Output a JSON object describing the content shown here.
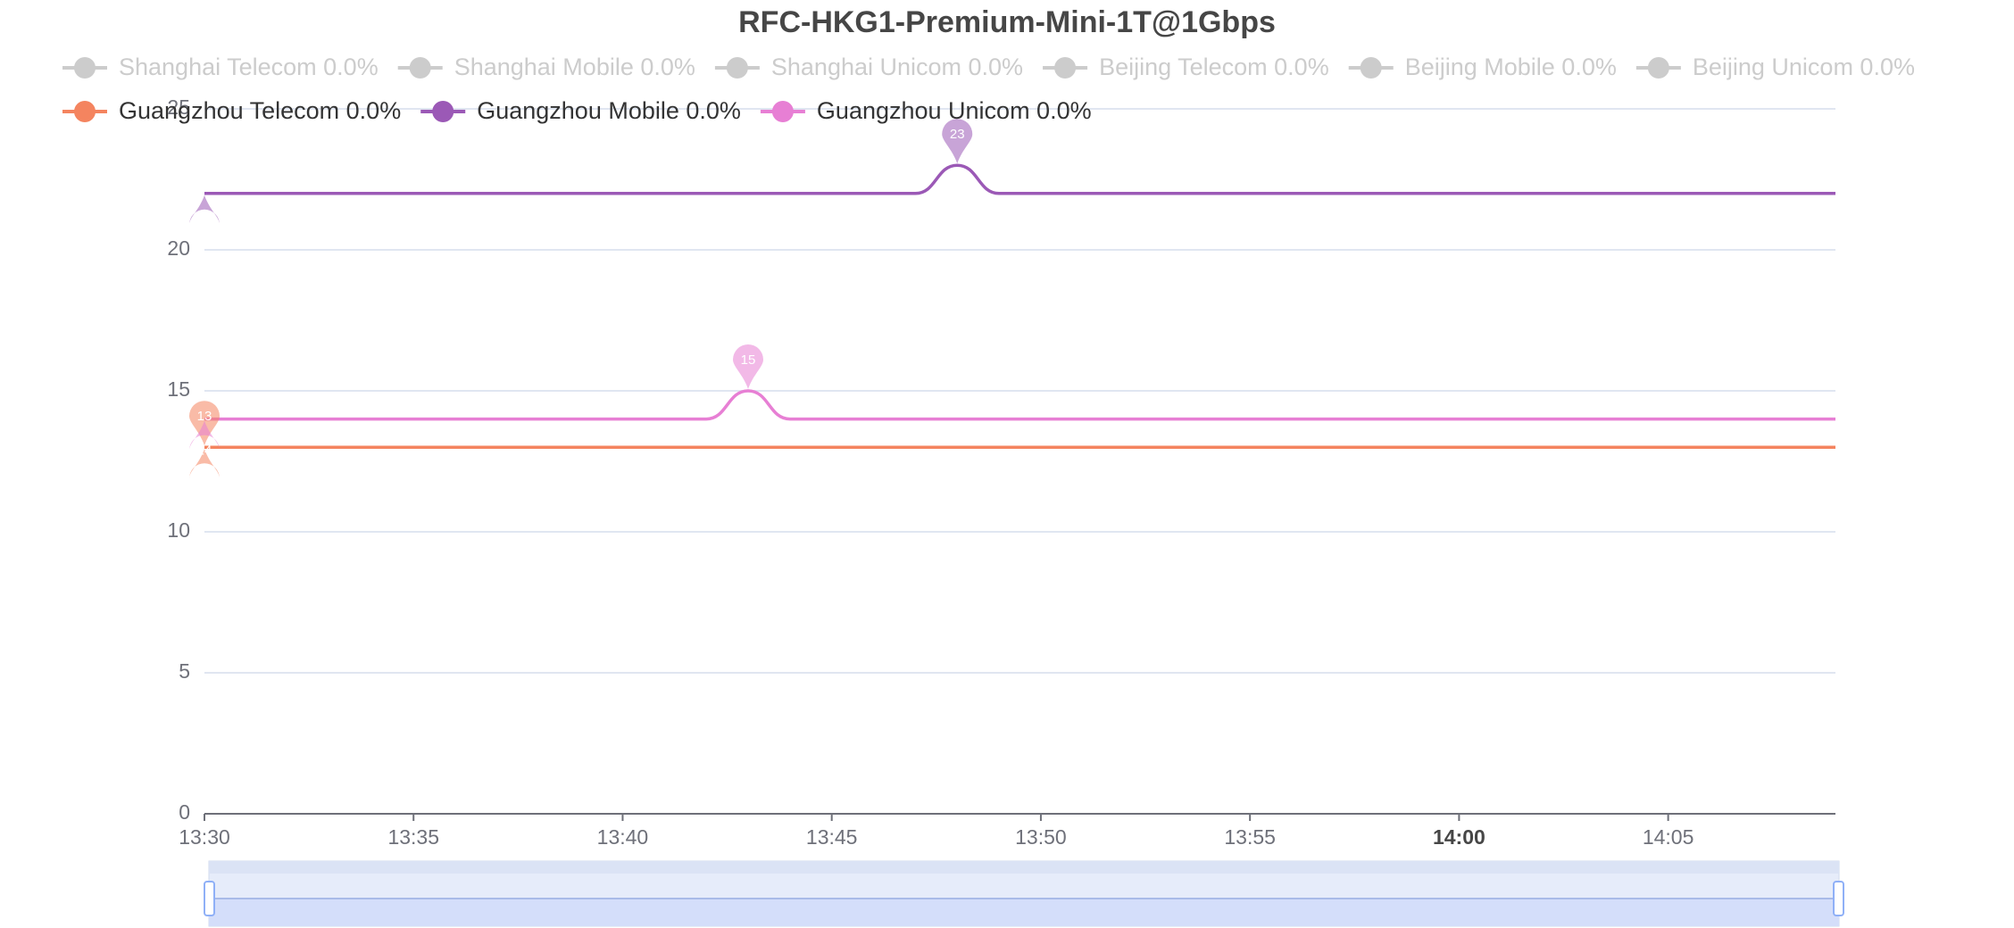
{
  "chart_data": {
    "type": "line",
    "title": "RFC-HKG1-Premium-Mini-1T@1Gbps",
    "x": [
      "13:30",
      "13:31",
      "13:32",
      "13:33",
      "13:34",
      "13:35",
      "13:36",
      "13:37",
      "13:38",
      "13:39",
      "13:40",
      "13:41",
      "13:42",
      "13:43",
      "13:44",
      "13:45",
      "13:46",
      "13:47",
      "13:48",
      "13:49",
      "13:50",
      "13:51",
      "13:52",
      "13:53",
      "13:54",
      "13:55",
      "13:56",
      "13:57",
      "13:58",
      "13:59",
      "14:00",
      "14:01",
      "14:02",
      "14:03",
      "14:04",
      "14:05",
      "14:06",
      "14:07",
      "14:08",
      "14:09"
    ],
    "xlim": [
      "13:30",
      "14:09"
    ],
    "xticks": [
      "13:30",
      "13:35",
      "13:40",
      "13:45",
      "13:50",
      "13:55",
      "14:00",
      "14:05"
    ],
    "ylim": [
      0,
      25
    ],
    "yticks": [
      0,
      5,
      10,
      15,
      20,
      25
    ],
    "grid": true,
    "series": [
      {
        "name": "Shanghai Telecom 0.0%",
        "color": "#cccccc",
        "visible": false
      },
      {
        "name": "Shanghai Mobile 0.0%",
        "color": "#cccccc",
        "visible": false
      },
      {
        "name": "Shanghai Unicom 0.0%",
        "color": "#cccccc",
        "visible": false
      },
      {
        "name": "Beijing Telecom 0.0%",
        "color": "#cccccc",
        "visible": false
      },
      {
        "name": "Beijing Mobile 0.0%",
        "color": "#cccccc",
        "visible": false
      },
      {
        "name": "Beijing Unicom 0.0%",
        "color": "#cccccc",
        "visible": false
      },
      {
        "name": "Guangzhou Telecom 0.0%",
        "color": "#f4845f",
        "visible": true,
        "values": [
          13,
          13,
          13,
          13,
          13,
          13,
          13,
          13,
          13,
          13,
          13,
          13,
          13,
          13,
          13,
          13,
          13,
          13,
          13,
          13,
          13,
          13,
          13,
          13,
          13,
          13,
          13,
          13,
          13,
          13,
          13,
          13,
          13,
          13,
          13,
          13,
          13,
          13,
          13,
          13
        ],
        "max": {
          "x": "13:30",
          "value": 13
        },
        "min": {
          "x": "13:30",
          "value": 13
        }
      },
      {
        "name": "Guangzhou Mobile 0.0%",
        "color": "#9b59b6",
        "visible": true,
        "values": [
          22,
          22,
          22,
          22,
          22,
          22,
          22,
          22,
          22,
          22,
          22,
          22,
          22,
          22,
          22,
          22,
          22,
          22,
          23,
          22,
          22,
          22,
          22,
          22,
          22,
          22,
          22,
          22,
          22,
          22,
          22,
          22,
          22,
          22,
          22,
          22,
          22,
          22,
          22,
          22
        ],
        "max": {
          "x": "13:48",
          "value": 23
        },
        "min": {
          "x": "13:30",
          "value": 22
        }
      },
      {
        "name": "Guangzhou Unicom 0.0%",
        "color": "#e77fd4",
        "visible": true,
        "values": [
          14,
          14,
          14,
          14,
          14,
          14,
          14,
          14,
          14,
          14,
          14,
          14,
          14,
          15,
          14,
          14,
          14,
          14,
          14,
          14,
          14,
          14,
          14,
          14,
          14,
          14,
          14,
          14,
          14,
          14,
          14,
          14,
          14,
          14,
          14,
          14,
          14,
          14,
          14,
          14
        ],
        "max": {
          "x": "13:43",
          "value": 15
        },
        "min": {
          "x": "13:30",
          "value": 14
        }
      }
    ]
  }
}
